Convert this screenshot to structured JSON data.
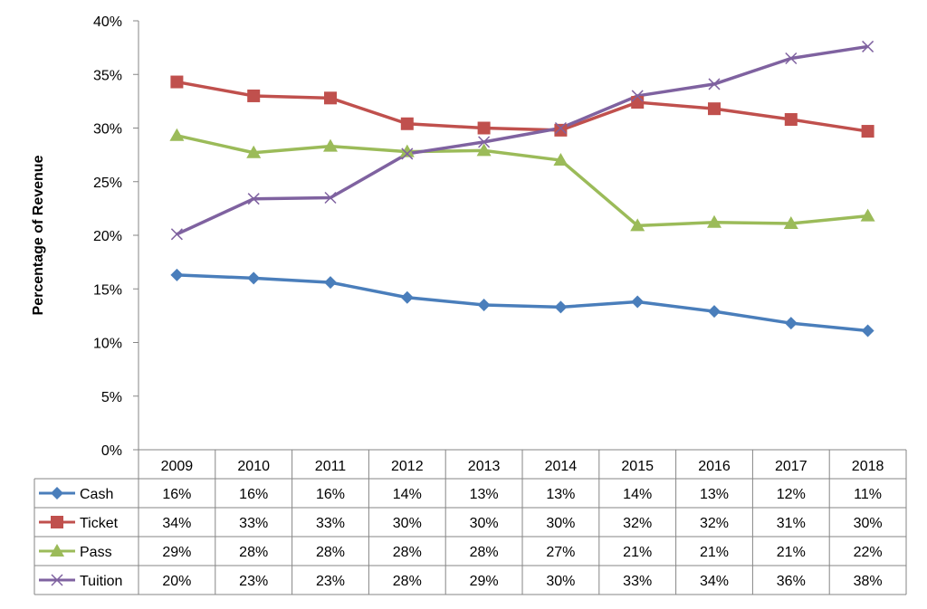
{
  "chart_data": {
    "type": "line",
    "ylabel": "Percentage of Revenue",
    "xlabel": "",
    "title": "",
    "ylim": [
      0,
      40
    ],
    "y_ticks": [
      "0%",
      "5%",
      "10%",
      "15%",
      "20%",
      "25%",
      "30%",
      "35%",
      "40%"
    ],
    "categories": [
      "2009",
      "2010",
      "2011",
      "2012",
      "2013",
      "2014",
      "2015",
      "2016",
      "2017",
      "2018"
    ],
    "grid": false,
    "legend": "data-table-below",
    "series": [
      {
        "name": "Cash",
        "color": "#4a7ebb",
        "marker": "diamond",
        "values": [
          16.3,
          16.0,
          15.6,
          14.2,
          13.5,
          13.3,
          13.8,
          12.9,
          11.8,
          11.1
        ],
        "labels": [
          "16%",
          "16%",
          "16%",
          "14%",
          "13%",
          "13%",
          "14%",
          "13%",
          "12%",
          "11%"
        ]
      },
      {
        "name": "Ticket",
        "color": "#c0504d",
        "marker": "square",
        "values": [
          34.3,
          33.0,
          32.8,
          30.4,
          30.0,
          29.8,
          32.4,
          31.8,
          30.8,
          29.7
        ],
        "labels": [
          "34%",
          "33%",
          "33%",
          "30%",
          "30%",
          "30%",
          "32%",
          "32%",
          "31%",
          "30%"
        ]
      },
      {
        "name": "Pass",
        "color": "#9bbb59",
        "marker": "triangle",
        "values": [
          29.3,
          27.7,
          28.3,
          27.8,
          27.9,
          27.0,
          20.9,
          21.2,
          21.1,
          21.8
        ],
        "labels": [
          "29%",
          "28%",
          "28%",
          "28%",
          "28%",
          "27%",
          "21%",
          "21%",
          "21%",
          "22%"
        ]
      },
      {
        "name": "Tuition",
        "color": "#7f62a0",
        "marker": "x",
        "values": [
          20.1,
          23.4,
          23.5,
          27.6,
          28.7,
          30.0,
          33.0,
          34.1,
          36.5,
          37.6
        ],
        "labels": [
          "20%",
          "23%",
          "23%",
          "28%",
          "29%",
          "30%",
          "33%",
          "34%",
          "36%",
          "38%"
        ]
      }
    ]
  }
}
